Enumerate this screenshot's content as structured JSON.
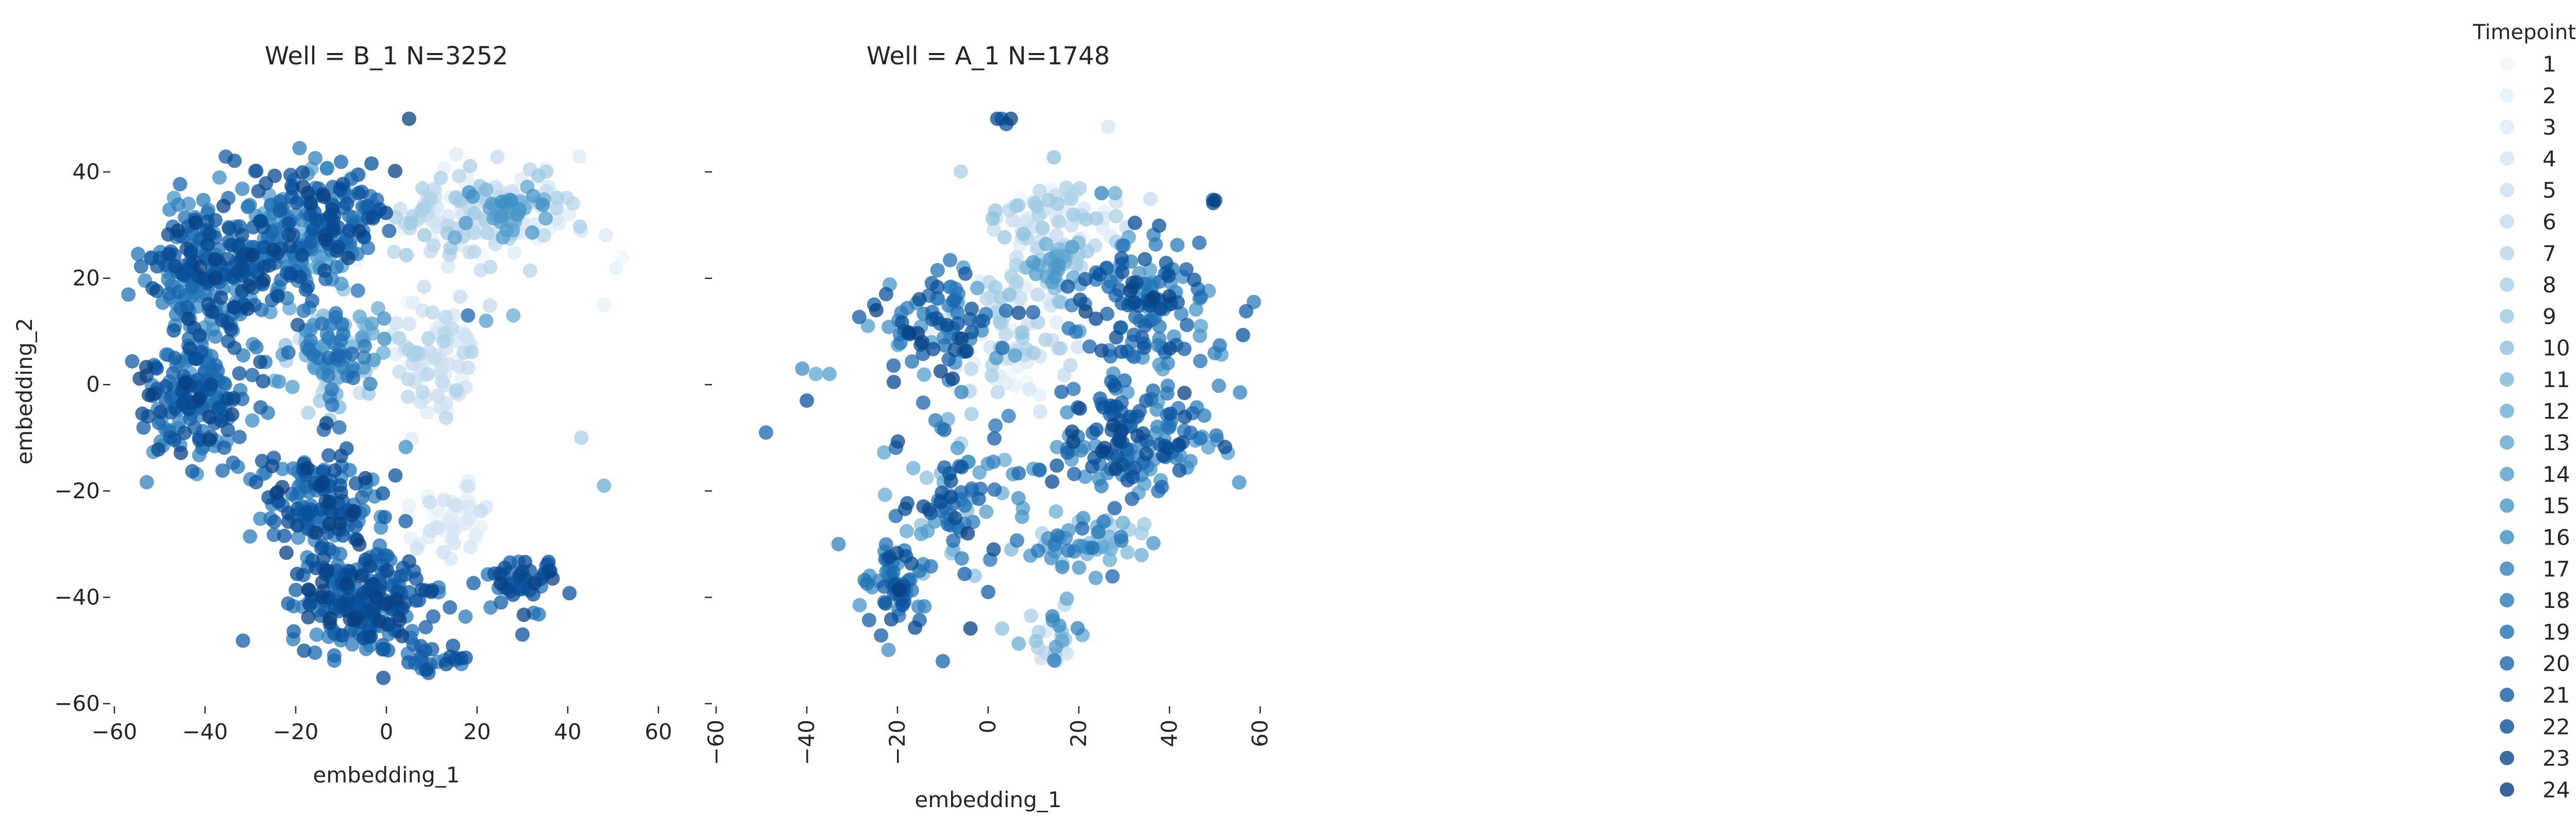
{
  "chart_data": [
    {
      "type": "scatter",
      "title": "Well = B_1 N=3252",
      "xlabel": "embedding_1",
      "ylabel": "embedding_2",
      "xlim": [
        -60,
        60
      ],
      "ylim": [
        -60,
        50
      ],
      "xticks": [
        "−60",
        "−40",
        "−20",
        "0",
        "20",
        "40",
        "60"
      ],
      "yticks": [
        "−60",
        "−40",
        "−20",
        "0",
        "20",
        "40"
      ],
      "clusters": [
        {
          "cx": -38,
          "cy": 22,
          "rx": 13,
          "ry": 13,
          "n": 260,
          "t": [
            15,
            24
          ]
        },
        {
          "cx": -42,
          "cy": -2,
          "rx": 11,
          "ry": 11,
          "n": 170,
          "t": [
            15,
            24
          ]
        },
        {
          "cx": -18,
          "cy": 28,
          "rx": 10,
          "ry": 12,
          "n": 170,
          "t": [
            12,
            24
          ]
        },
        {
          "cx": -8,
          "cy": 32,
          "rx": 7,
          "ry": 8,
          "n": 60,
          "t": [
            16,
            24
          ]
        },
        {
          "cx": -12,
          "cy": 5,
          "rx": 10,
          "ry": 9,
          "n": 110,
          "t": [
            6,
            20
          ]
        },
        {
          "cx": -15,
          "cy": -22,
          "rx": 12,
          "ry": 10,
          "n": 150,
          "t": [
            16,
            24
          ]
        },
        {
          "cx": -5,
          "cy": -40,
          "rx": 14,
          "ry": 9,
          "n": 230,
          "t": [
            17,
            24
          ]
        },
        {
          "cx": 30,
          "cy": -37,
          "rx": 7,
          "ry": 5,
          "n": 50,
          "t": [
            18,
            24
          ]
        },
        {
          "cx": 22,
          "cy": 32,
          "rx": 20,
          "ry": 8,
          "n": 170,
          "t": [
            1,
            9
          ]
        },
        {
          "cx": 28,
          "cy": 32,
          "rx": 10,
          "ry": 5,
          "n": 40,
          "t": [
            11,
            16
          ]
        },
        {
          "cx": 10,
          "cy": 5,
          "rx": 9,
          "ry": 12,
          "n": 90,
          "t": [
            1,
            8
          ]
        },
        {
          "cx": 15,
          "cy": -25,
          "rx": 8,
          "ry": 6,
          "n": 45,
          "t": [
            1,
            6
          ]
        },
        {
          "cx": 10,
          "cy": -52,
          "rx": 8,
          "ry": 2,
          "n": 25,
          "t": [
            17,
            23
          ]
        }
      ],
      "points": [
        {
          "x": 4,
          "y": 51,
          "t": 23
        },
        {
          "x": 6,
          "y": 52,
          "t": 22
        },
        {
          "x": 3,
          "y": 51,
          "t": 21
        },
        {
          "x": 5,
          "y": 50,
          "t": 24
        },
        {
          "x": 48,
          "y": -19,
          "t": 12
        },
        {
          "x": 43,
          "y": -10,
          "t": 8
        },
        {
          "x": 48,
          "y": 15,
          "t": 2
        },
        {
          "x": 52,
          "y": 24,
          "t": 1
        },
        {
          "x": 30,
          "y": -47,
          "t": 22
        },
        {
          "x": 22,
          "y": 12,
          "t": 14
        },
        {
          "x": 28,
          "y": 13,
          "t": 12
        },
        {
          "x": 18,
          "y": 13,
          "t": 20
        }
      ]
    },
    {
      "type": "scatter",
      "title": "Well = A_1 N=1748",
      "xlabel": "embedding_1",
      "ylabel": "",
      "xlim": [
        -60,
        60
      ],
      "ylim": [
        -60,
        50
      ],
      "xticks": [
        "−60",
        "−40",
        "−20",
        "0",
        "20",
        "40",
        "60"
      ],
      "clusters": [
        {
          "cx": -10,
          "cy": 12,
          "rx": 14,
          "ry": 9,
          "n": 90,
          "t": [
            14,
            24
          ]
        },
        {
          "cx": -20,
          "cy": -37,
          "rx": 5,
          "ry": 8,
          "n": 60,
          "t": [
            15,
            24
          ]
        },
        {
          "cx": -8,
          "cy": -20,
          "rx": 12,
          "ry": 14,
          "n": 85,
          "t": [
            10,
            24
          ]
        },
        {
          "cx": 35,
          "cy": 15,
          "rx": 14,
          "ry": 13,
          "n": 150,
          "t": [
            14,
            24
          ]
        },
        {
          "cx": 32,
          "cy": -10,
          "rx": 18,
          "ry": 10,
          "n": 150,
          "t": [
            14,
            24
          ]
        },
        {
          "cx": 20,
          "cy": -30,
          "rx": 14,
          "ry": 6,
          "n": 60,
          "t": [
            8,
            20
          ]
        },
        {
          "cx": 5,
          "cy": 10,
          "rx": 12,
          "ry": 13,
          "n": 90,
          "t": [
            1,
            10
          ]
        },
        {
          "cx": 15,
          "cy": 30,
          "rx": 15,
          "ry": 9,
          "n": 90,
          "t": [
            1,
            10
          ]
        },
        {
          "cx": 14,
          "cy": 22,
          "rx": 5,
          "ry": 5,
          "n": 30,
          "t": [
            9,
            15
          ]
        },
        {
          "cx": 12,
          "cy": -48,
          "rx": 7,
          "ry": 4,
          "n": 25,
          "t": [
            4,
            18
          ]
        }
      ],
      "points": [
        {
          "x": 2,
          "y": 50,
          "t": 23
        },
        {
          "x": 4,
          "y": 49,
          "t": 22
        },
        {
          "x": 5,
          "y": 50,
          "t": 24
        },
        {
          "x": 3,
          "y": 50,
          "t": 21
        },
        {
          "x": -49,
          "y": -9,
          "t": 20
        },
        {
          "x": -40,
          "y": -3,
          "t": 22
        },
        {
          "x": -33,
          "y": -30,
          "t": 17
        },
        {
          "x": -35,
          "y": 2,
          "t": 14
        },
        {
          "x": -41,
          "y": 3,
          "t": 16
        },
        {
          "x": -38,
          "y": 2,
          "t": 13
        },
        {
          "x": 25,
          "y": 36,
          "t": 17
        },
        {
          "x": 28,
          "y": 36,
          "t": 12
        },
        {
          "x": 15,
          "y": -52,
          "t": 7
        },
        {
          "x": -10,
          "y": -52,
          "t": 20
        },
        {
          "x": 0,
          "y": -39,
          "t": 21
        }
      ]
    }
  ],
  "legend": {
    "title": "Timepoint",
    "labels": [
      "1",
      "2",
      "3",
      "4",
      "5",
      "6",
      "7",
      "8",
      "9",
      "10",
      "11",
      "12",
      "13",
      "14",
      "15",
      "16",
      "17",
      "18",
      "19",
      "20",
      "21",
      "22",
      "23",
      "24"
    ],
    "colors": [
      "#eef5fc",
      "#e6f0fa",
      "#deebf7",
      "#d6e6f4",
      "#cde0f1",
      "#c6dbef",
      "#b9d5ea",
      "#abd0e6",
      "#9ecae1",
      "#8ec1de",
      "#7db8da",
      "#6baed6",
      "#60a6d1",
      "#539ecd",
      "#4896c8",
      "#3d8dc4",
      "#3182bd",
      "#2979b9",
      "#2171b5",
      "#1966ad",
      "#115ca5",
      "#08519c",
      "#084990",
      "#084081"
    ]
  }
}
